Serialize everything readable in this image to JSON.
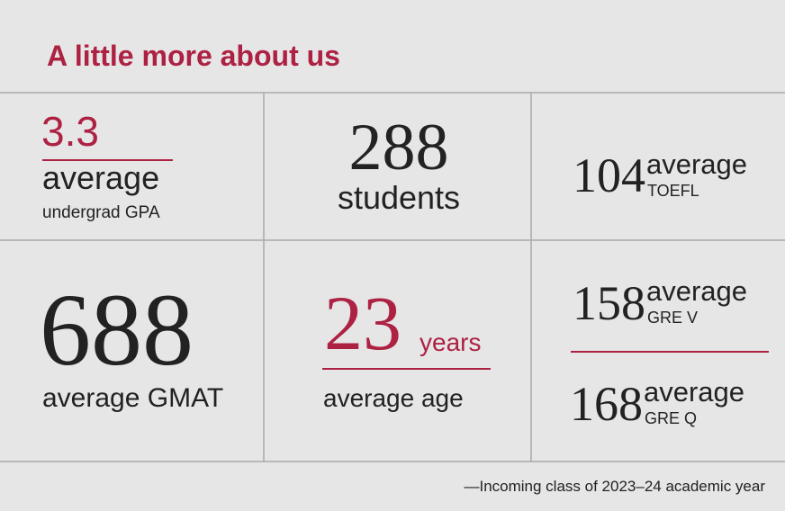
{
  "title": "A little more about us",
  "stats": [
    {
      "value": "3.3",
      "label": "average",
      "sublabel": "undergrad GPA"
    },
    {
      "value": "288",
      "label": "students"
    },
    {
      "value": "104",
      "label": "average",
      "sublabel": "TOEFL"
    },
    {
      "value": "688",
      "label": "average GMAT"
    },
    {
      "value": "23",
      "unit": "years",
      "label": "average age"
    },
    {
      "value": "158",
      "label": "average",
      "sublabel": "GRE V"
    },
    {
      "value": "168",
      "label": "average",
      "sublabel": "GRE Q"
    }
  ],
  "footnote": "—Incoming class of 2023–24 academic year"
}
